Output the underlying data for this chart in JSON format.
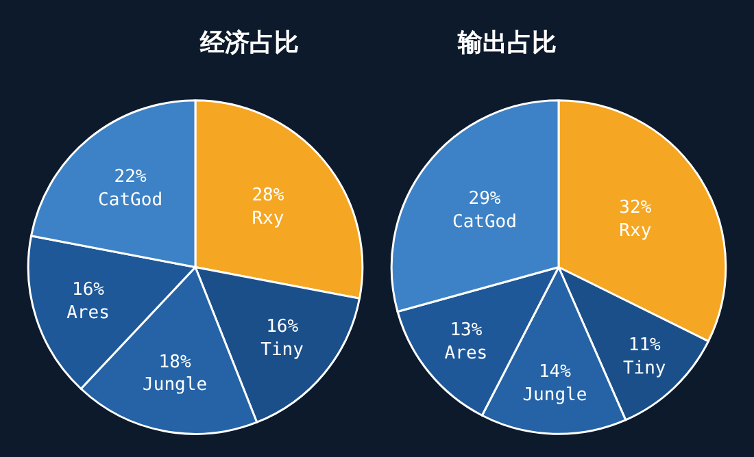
{
  "chart_data": [
    {
      "type": "pie",
      "title": "经济占比",
      "categories": [
        "Rxy",
        "Tiny",
        "Jungle",
        "Ares",
        "CatGod"
      ],
      "values": [
        28,
        16,
        18,
        16,
        22
      ],
      "value_labels": [
        "28%",
        "16%",
        "18%",
        "16%",
        "22%"
      ],
      "colors": [
        "#f5a623",
        "#1b4f8a",
        "#2563a6",
        "#1e5898",
        "#3d82c6"
      ]
    },
    {
      "type": "pie",
      "title": "输出占比",
      "categories": [
        "Rxy",
        "Tiny",
        "Jungle",
        "Ares",
        "CatGod"
      ],
      "values": [
        32,
        11,
        14,
        13,
        29
      ],
      "value_labels": [
        "32%",
        "11%",
        "14%",
        "13%",
        "29%"
      ],
      "colors": [
        "#f5a623",
        "#1b4f8a",
        "#2563a6",
        "#1e5898",
        "#3d82c6"
      ]
    }
  ]
}
